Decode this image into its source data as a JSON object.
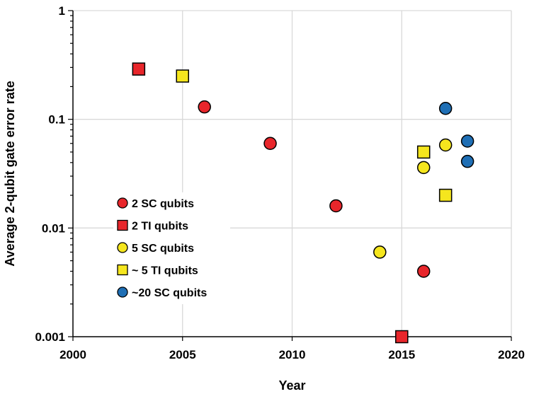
{
  "chart_data": {
    "type": "scatter",
    "title": "",
    "xlabel": "Year",
    "ylabel": "Average 2-qubit gate error rate",
    "xlim": [
      2000,
      2020
    ],
    "ylim": [
      0.001,
      1
    ],
    "yscale": "log",
    "x_ticks": [
      2000,
      2005,
      2010,
      2015,
      2020
    ],
    "x_tick_labels": [
      "2000",
      "2005",
      "2010",
      "2015",
      "2020"
    ],
    "y_ticks": [
      0.001,
      0.01,
      0.1,
      1
    ],
    "y_tick_labels": [
      "0.001",
      "0.01",
      "0.1",
      "1"
    ],
    "grid": true,
    "legend_position": "left-middle",
    "series": [
      {
        "name": "2 SC qubits",
        "marker": "circle",
        "color": "#e8262b",
        "points": [
          {
            "x": 2006,
            "y": 0.13
          },
          {
            "x": 2009,
            "y": 0.06
          },
          {
            "x": 2012,
            "y": 0.016
          },
          {
            "x": 2016,
            "y": 0.004
          }
        ]
      },
      {
        "name": "2 TI qubits",
        "marker": "square",
        "color": "#e8262b",
        "points": [
          {
            "x": 2003,
            "y": 0.29
          },
          {
            "x": 2015,
            "y": 0.001
          }
        ]
      },
      {
        "name": "5 SC qubits",
        "marker": "circle",
        "color": "#f5e61e",
        "points": [
          {
            "x": 2014,
            "y": 0.006
          },
          {
            "x": 2016,
            "y": 0.036
          },
          {
            "x": 2017,
            "y": 0.058
          }
        ]
      },
      {
        "name": "~ 5 TI qubits",
        "marker": "square",
        "color": "#f5e61e",
        "points": [
          {
            "x": 2005,
            "y": 0.25
          },
          {
            "x": 2016,
            "y": 0.05
          },
          {
            "x": 2017,
            "y": 0.02
          }
        ]
      },
      {
        "name": "~20 SC qubits",
        "marker": "circle",
        "color": "#1f6fb5",
        "points": [
          {
            "x": 2017,
            "y": 0.126
          },
          {
            "x": 2018,
            "y": 0.063
          },
          {
            "x": 2018,
            "y": 0.041
          }
        ]
      }
    ]
  }
}
